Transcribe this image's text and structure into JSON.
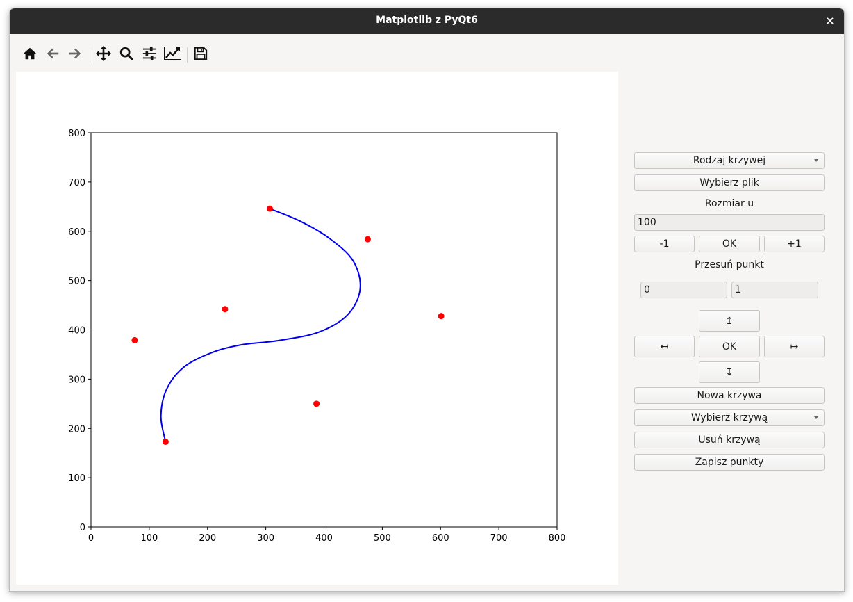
{
  "window": {
    "title": "Matplotlib z PyQt6",
    "close_label": "×"
  },
  "toolbar": {
    "items": [
      "home-icon",
      "back-icon",
      "forward-icon",
      "pan-icon",
      "zoom-icon",
      "configure-subplots-icon",
      "edit-axis-icon",
      "save-icon"
    ]
  },
  "panel": {
    "curve_type": "Rodzaj krzywej",
    "choose_file": "Wybierz plik",
    "u_size_label": "Rozmiar u",
    "u_size_value": "100",
    "minus_one": "-1",
    "ok": "OK",
    "plus_one": "+1",
    "move_point_label": "Przesuń punkt",
    "move_x": "0",
    "move_y": "1",
    "up_arrow": "↥",
    "left_arrow": "↤",
    "move_ok": "OK",
    "right_arrow": "↦",
    "down_arrow": "↧",
    "new_curve": "Nowa krzywa",
    "choose_curve": "Wybierz krzywą",
    "delete_curve": "Usuń krzywą",
    "save_points": "Zapisz punkty"
  },
  "chart_data": {
    "type": "scatter",
    "xlim": [
      0,
      800
    ],
    "ylim": [
      0,
      800
    ],
    "xticks": [
      "0",
      "100",
      "200",
      "300",
      "400",
      "500",
      "600",
      "700",
      "800"
    ],
    "yticks": [
      "0",
      "100",
      "200",
      "300",
      "400",
      "500",
      "600",
      "700",
      "800"
    ],
    "grid": false,
    "control_points": {
      "color": "#ff0000",
      "points": [
        [
          75,
          379
        ],
        [
          128,
          173
        ],
        [
          230,
          442
        ],
        [
          307,
          646
        ],
        [
          387,
          250
        ],
        [
          475,
          584
        ],
        [
          601,
          428
        ]
      ]
    },
    "curve": {
      "color": "#0000ee",
      "points": [
        [
          307,
          646
        ],
        [
          360,
          620
        ],
        [
          410,
          585
        ],
        [
          450,
          540
        ],
        [
          462,
          483
        ],
        [
          440,
          430
        ],
        [
          390,
          395
        ],
        [
          320,
          378
        ],
        [
          260,
          370
        ],
        [
          210,
          355
        ],
        [
          160,
          325
        ],
        [
          130,
          280
        ],
        [
          120,
          225
        ],
        [
          128,
          173
        ]
      ]
    }
  }
}
